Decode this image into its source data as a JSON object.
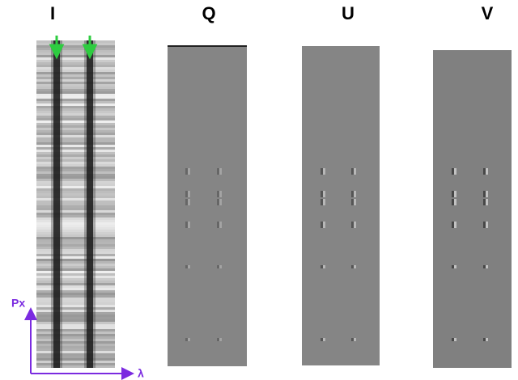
{
  "panels": [
    {
      "label": "I"
    },
    {
      "label": "Q"
    },
    {
      "label": "U"
    },
    {
      "label": "V"
    }
  ],
  "axes": {
    "y_label": "Px",
    "x_label": "λ"
  }
}
